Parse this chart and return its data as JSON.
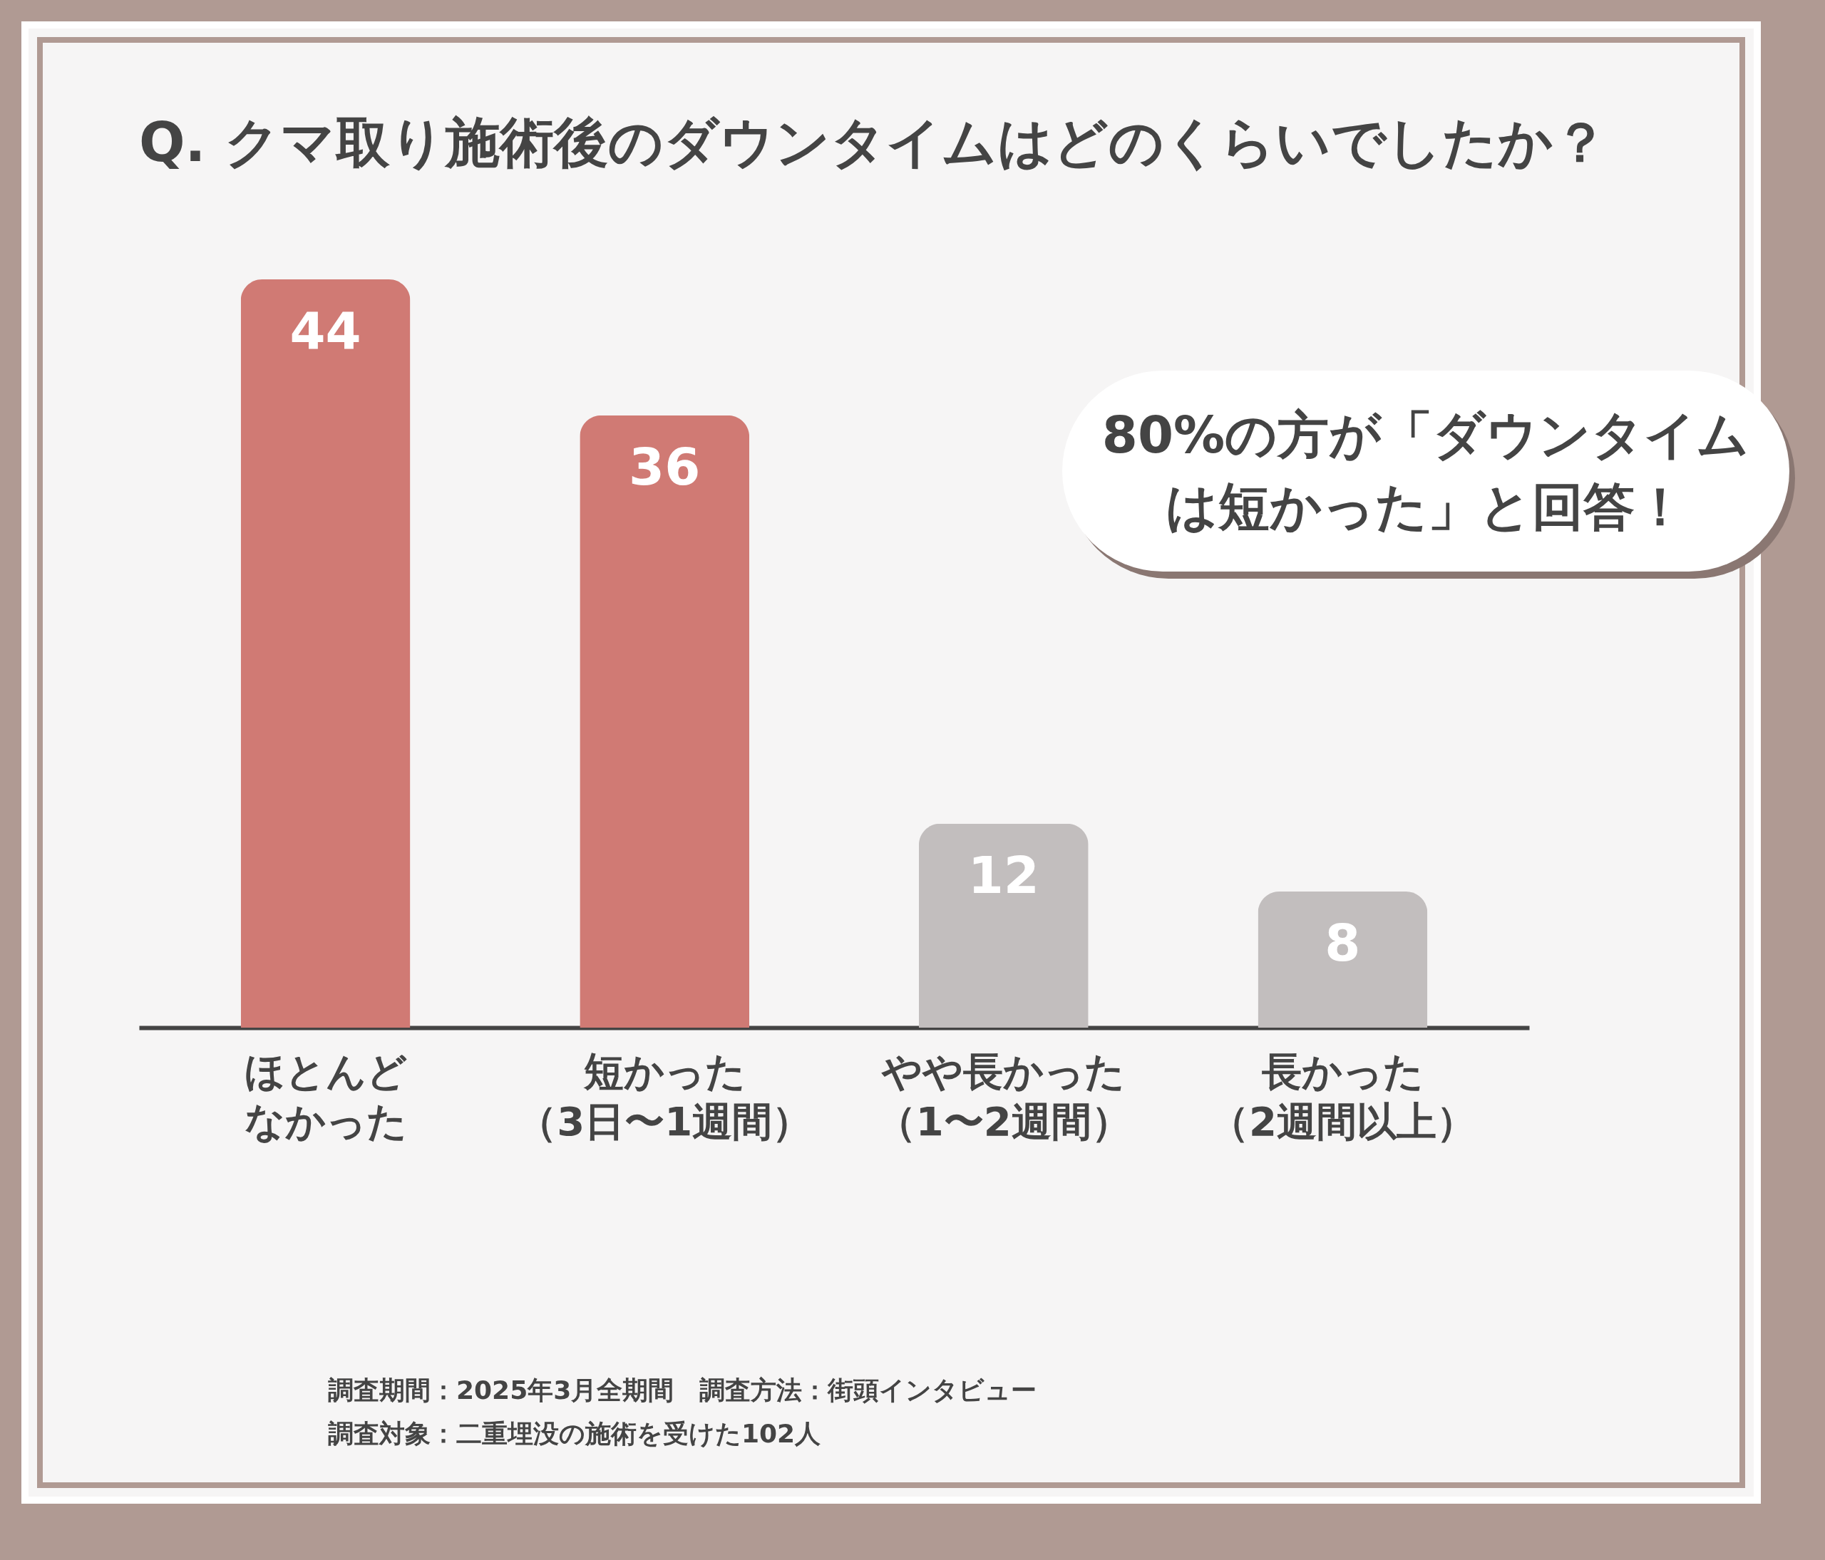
{
  "chart_data": {
    "type": "bar",
    "title": "Q. クマ取り施術後のダウンタイムはどのくらいでしたか？",
    "categories": [
      "ほとんどなかった",
      "短かった（3日〜1週間）",
      "やや長かった（1〜2週間）",
      "長かった（2週間以上）"
    ],
    "values": [
      44,
      36,
      12,
      8
    ],
    "colors": [
      "#d07a74",
      "#d07a74",
      "#c2bebe",
      "#c2bebe"
    ],
    "data_labels": true,
    "annotations": [
      "80%の方が「ダウンタイムは短かった」と回答！",
      "調査期間：2025年3月全期間　調査方法：街頭インタビュー",
      "調査対象：二重埋没の施術を受けた102人"
    ]
  }
}
